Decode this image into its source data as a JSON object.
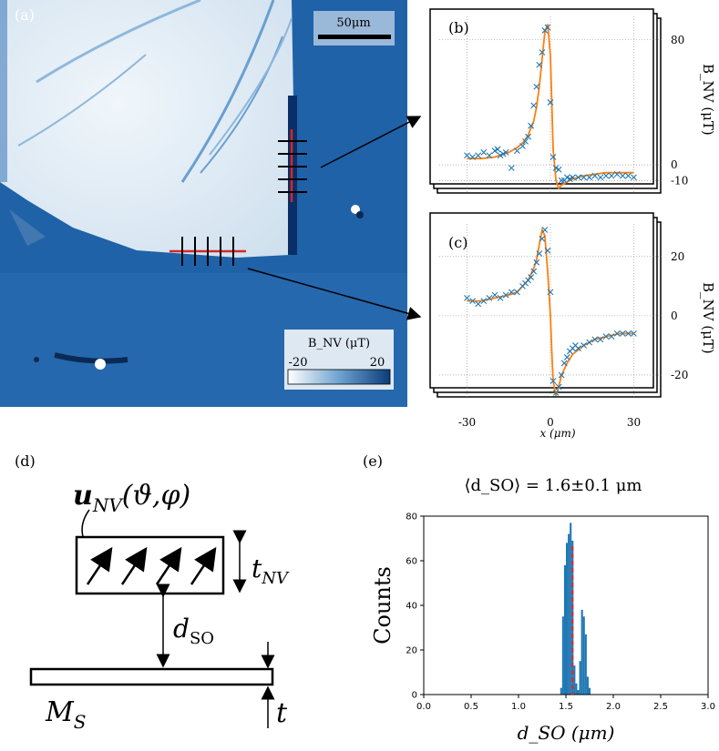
{
  "panels": {
    "a": "(a)",
    "b": "(b)",
    "c": "(c)",
    "d": "(d)",
    "e": "(e)"
  },
  "map": {
    "scalebar_label": "50μm",
    "colorbar_title": "B_NV (μT)",
    "colorbar_min": "-20",
    "colorbar_max": "20",
    "colors": {
      "low": "#ffffff",
      "mid": "#6fa3d0",
      "high": "#0b3d7a",
      "background": "#1f62a8",
      "flake": "#dbe9f4",
      "linecut": "#d62728"
    }
  },
  "schematic": {
    "vector_label": "u",
    "vector_sub": "NV",
    "vector_args": "(ϑ,φ)",
    "tnv_label": "t",
    "tnv_sub": "NV",
    "dso_label": "d",
    "dso_sub": "SO",
    "ms_label": "M",
    "ms_sub": "S",
    "t_label": "t"
  },
  "chart_data": [
    {
      "id": "b",
      "type": "scatter",
      "xlabel": "",
      "ylabel": "B_NV (μT)",
      "xlim": [
        -40,
        40
      ],
      "ylim": [
        -18,
        95
      ],
      "yticks": [
        80,
        0,
        -10
      ],
      "xticks": [
        -30,
        0,
        30
      ],
      "grid": true,
      "series": [
        {
          "kind": "markers",
          "color": "#1f77b4",
          "x": [
            -30,
            -28,
            -26,
            -24,
            -22,
            -20,
            -19,
            -18,
            -17,
            -16,
            -14,
            -12,
            -10,
            -9,
            -8,
            -7,
            -6,
            -5,
            -4,
            -3,
            -2,
            -1,
            0,
            1,
            2,
            3,
            4,
            5,
            6,
            7,
            8,
            10,
            12,
            14,
            16,
            18,
            20,
            22,
            24,
            26,
            28,
            30
          ],
          "y": [
            6,
            5,
            6,
            8,
            6,
            9,
            10,
            6,
            7,
            8,
            -2,
            9,
            12,
            15,
            18,
            25,
            38,
            50,
            64,
            72,
            86,
            88,
            40,
            5,
            -2,
            -3,
            -10,
            -10,
            -8,
            -9,
            -8,
            -8,
            -8,
            -8,
            -7,
            -8,
            -7,
            -7,
            -6,
            -7,
            -7,
            -8
          ]
        },
        {
          "kind": "fit",
          "color": "#ff7f0e",
          "x": [
            -30,
            -25,
            -20,
            -15,
            -12,
            -10,
            -8,
            -6,
            -5,
            -4,
            -3,
            -2,
            -1,
            0,
            0.5,
            1,
            2,
            3,
            4,
            6,
            8,
            12,
            16,
            20,
            25,
            30
          ],
          "y": [
            4,
            4,
            5,
            8,
            11,
            14,
            19,
            28,
            37,
            50,
            68,
            85,
            90,
            70,
            40,
            10,
            -10,
            -15,
            -13,
            -11,
            -9,
            -7,
            -6,
            -5,
            -5,
            -5
          ]
        }
      ]
    },
    {
      "id": "c",
      "type": "scatter",
      "xlabel": "x (μm)",
      "ylabel": "B_NV (μT)",
      "xlim": [
        -40,
        40
      ],
      "ylim": [
        -28,
        31
      ],
      "yticks": [
        20,
        0,
        -20
      ],
      "xticks": [
        -30,
        0,
        30
      ],
      "xticklabels": [
        "-30",
        "0",
        "30"
      ],
      "grid": true,
      "series": [
        {
          "kind": "markers",
          "color": "#1f77b4",
          "x": [
            -30,
            -28,
            -26,
            -24,
            -22,
            -20,
            -18,
            -16,
            -14,
            -12,
            -10,
            -9,
            -8,
            -7,
            -6,
            -5,
            -4,
            -3,
            -2,
            -1,
            0,
            1,
            2,
            3,
            4,
            5,
            6,
            7,
            8,
            9,
            10,
            12,
            14,
            16,
            18,
            20,
            22,
            24,
            26,
            28,
            30
          ],
          "y": [
            6,
            5,
            4,
            5,
            6,
            7,
            6,
            7,
            8,
            8,
            10,
            11,
            12,
            13,
            15,
            18,
            21,
            26,
            29,
            22,
            8,
            -22,
            -26,
            -24,
            -20,
            -16,
            -14,
            -12,
            -11,
            -10,
            -11,
            -10,
            -9,
            -8,
            -8,
            -7,
            -7,
            -6,
            -6,
            -6,
            -6
          ]
        },
        {
          "kind": "fit",
          "color": "#ff7f0e",
          "x": [
            -30,
            -25,
            -20,
            -15,
            -12,
            -10,
            -8,
            -6,
            -5,
            -4,
            -3,
            -2,
            -1,
            0,
            0.5,
            1,
            2,
            3,
            4,
            6,
            8,
            12,
            16,
            20,
            25,
            30
          ],
          "y": [
            5,
            5,
            6,
            7,
            8,
            10,
            12,
            16,
            19,
            24,
            29,
            27,
            15,
            0,
            -12,
            -22,
            -27,
            -24,
            -20,
            -16,
            -13,
            -10,
            -8,
            -7,
            -6,
            -6
          ]
        }
      ]
    },
    {
      "id": "e",
      "type": "bar",
      "title": "⟨d_SO⟩ = 1.6±0.1 μm",
      "xlabel": "d_SO (μm)",
      "ylabel": "Counts",
      "xlim": [
        0,
        3
      ],
      "ylim": [
        0,
        80
      ],
      "xticks": [
        "0.0",
        "0.5",
        "1.0",
        "1.5",
        "2.0",
        "2.5",
        "3.0"
      ],
      "yticks": [
        "0",
        "20",
        "40",
        "60",
        "80"
      ],
      "mean_line": 1.57,
      "bar_color": "#1f77b4",
      "mean_color": "#d62728",
      "bins": [
        1.44,
        1.46,
        1.48,
        1.5,
        1.52,
        1.54,
        1.56,
        1.58,
        1.6,
        1.62,
        1.64,
        1.66,
        1.68,
        1.7,
        1.72,
        1.74
      ],
      "values": [
        3,
        35,
        58,
        68,
        72,
        77,
        69,
        13,
        5,
        2,
        15,
        38,
        35,
        27,
        8,
        3
      ]
    }
  ]
}
